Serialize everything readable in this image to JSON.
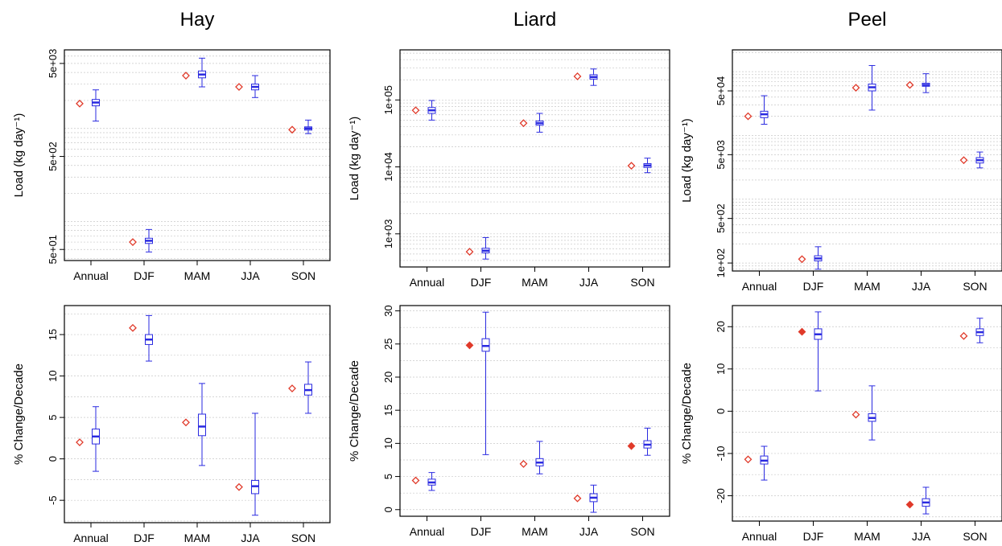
{
  "colors": {
    "box": "#2a2ae0",
    "marker": "#e03a2a",
    "grid": "#c8c8c8",
    "axis": "#000000"
  },
  "chart_data": [
    {
      "id": "hay-load",
      "type": "boxplot",
      "title": "Hay",
      "ylabel": "Load (kg day⁻¹)",
      "yscale": "log",
      "ylim": [
        38,
        7000
      ],
      "yticks": [
        50,
        500,
        5000
      ],
      "ytick_labels": [
        "5e+01",
        "5e+02",
        "5e+03"
      ],
      "categories": [
        "Annual",
        "DJF",
        "MAM",
        "JJA",
        "SON"
      ],
      "boxes": [
        {
          "whislo": 1200,
          "q1": 1750,
          "med": 1900,
          "q3": 2050,
          "whishi": 2600
        },
        {
          "whislo": 47,
          "q1": 58,
          "med": 62,
          "q3": 66,
          "whishi": 82
        },
        {
          "whislo": 2800,
          "q1": 3500,
          "med": 3800,
          "q3": 4150,
          "whishi": 5700
        },
        {
          "whislo": 2150,
          "q1": 2600,
          "med": 2800,
          "q3": 3000,
          "whishi": 3700
        },
        {
          "whislo": 880,
          "q1": 960,
          "med": 1000,
          "q3": 1040,
          "whishi": 1230
        }
      ],
      "markers": [
        1850,
        60,
        3700,
        2800,
        970
      ],
      "marker_filled": [
        false,
        false,
        false,
        false,
        false
      ]
    },
    {
      "id": "liard-load",
      "type": "boxplot",
      "title": "Liard",
      "ylabel": "Load (kg day⁻¹)",
      "yscale": "log",
      "ylim": [
        320,
        560000
      ],
      "yticks": [
        1000,
        10000,
        100000
      ],
      "ytick_labels": [
        "1e+03",
        "1e+04",
        "1e+05"
      ],
      "categories": [
        "Annual",
        "DJF",
        "MAM",
        "JJA",
        "SON"
      ],
      "boxes": [
        {
          "whislo": 50000,
          "q1": 63000,
          "med": 70000,
          "q3": 77000,
          "whishi": 98000
        },
        {
          "whislo": 420,
          "q1": 520,
          "med": 560,
          "q3": 610,
          "whishi": 880
        },
        {
          "whislo": 33000,
          "q1": 42000,
          "med": 45000,
          "q3": 48500,
          "whishi": 63000
        },
        {
          "whislo": 165000,
          "q1": 205000,
          "med": 220000,
          "q3": 238000,
          "whishi": 290000
        },
        {
          "whislo": 8200,
          "q1": 9800,
          "med": 10500,
          "q3": 11200,
          "whishi": 13500
        }
      ],
      "markers": [
        70000,
        540,
        45000,
        225000,
        10400
      ],
      "marker_filled": [
        false,
        false,
        false,
        false,
        false
      ]
    },
    {
      "id": "peel-load",
      "type": "boxplot",
      "title": "Peel",
      "ylabel": "Load (kg day⁻¹)",
      "yscale": "log",
      "ylim": [
        75,
        220000
      ],
      "yticks": [
        100,
        500,
        5000,
        50000
      ],
      "ytick_labels": [
        "1e+02",
        "5e+02",
        "5e+03",
        "5e+04"
      ],
      "categories": [
        "Annual",
        "DJF",
        "MAM",
        "JJA",
        "SON"
      ],
      "boxes": [
        {
          "whislo": 15000,
          "q1": 19000,
          "med": 21500,
          "q3": 24000,
          "whishi": 42000
        },
        {
          "whislo": 80,
          "q1": 108,
          "med": 118,
          "q3": 130,
          "whishi": 180
        },
        {
          "whislo": 25000,
          "q1": 50000,
          "med": 57000,
          "q3": 64000,
          "whishi": 125000
        },
        {
          "whislo": 47000,
          "q1": 59000,
          "med": 62000,
          "q3": 66000,
          "whishi": 93000
        },
        {
          "whislo": 3100,
          "q1": 3700,
          "med": 4100,
          "q3": 4500,
          "whishi": 5500
        }
      ],
      "markers": [
        20000,
        115,
        56000,
        62000,
        4100
      ],
      "marker_filled": [
        false,
        false,
        false,
        false,
        false
      ]
    },
    {
      "id": "hay-change",
      "type": "boxplot",
      "ylabel": "% Change/Decade",
      "yscale": "linear",
      "ylim": [
        -7.7,
        18.5
      ],
      "yticks": [
        -5,
        0,
        5,
        10,
        15
      ],
      "ytick_labels": [
        "-5",
        "0",
        "5",
        "10",
        "15"
      ],
      "categories": [
        "Annual",
        "DJF",
        "MAM",
        "JJA",
        "SON"
      ],
      "boxes": [
        {
          "whislo": -1.5,
          "q1": 1.8,
          "med": 2.7,
          "q3": 3.6,
          "whishi": 6.3
        },
        {
          "whislo": 11.8,
          "q1": 13.8,
          "med": 14.4,
          "q3": 15.0,
          "whishi": 17.3
        },
        {
          "whislo": -0.8,
          "q1": 2.8,
          "med": 3.9,
          "q3": 5.4,
          "whishi": 9.1
        },
        {
          "whislo": -6.8,
          "q1": -4.2,
          "med": -3.3,
          "q3": -2.6,
          "whishi": 5.5
        },
        {
          "whislo": 5.5,
          "q1": 7.7,
          "med": 8.3,
          "q3": 9.0,
          "whishi": 11.7
        }
      ],
      "markers": [
        2.0,
        15.8,
        4.4,
        -3.4,
        8.5
      ],
      "marker_filled": [
        false,
        false,
        false,
        false,
        false
      ]
    },
    {
      "id": "liard-change",
      "type": "boxplot",
      "ylabel": "% Change/Decade",
      "yscale": "linear",
      "ylim": [
        -1.0,
        30.8
      ],
      "yticks": [
        0,
        5,
        10,
        15,
        20,
        25,
        30
      ],
      "ytick_labels": [
        "0",
        "5",
        "10",
        "15",
        "20",
        "25",
        "30"
      ],
      "categories": [
        "Annual",
        "DJF",
        "MAM",
        "JJA",
        "SON"
      ],
      "boxes": [
        {
          "whislo": 2.9,
          "q1": 3.7,
          "med": 4.1,
          "q3": 4.6,
          "whishi": 5.6
        },
        {
          "whislo": 8.3,
          "q1": 23.9,
          "med": 24.7,
          "q3": 25.8,
          "whishi": 29.8
        },
        {
          "whislo": 5.4,
          "q1": 6.6,
          "med": 7.1,
          "q3": 7.7,
          "whishi": 10.3
        },
        {
          "whislo": -0.4,
          "q1": 1.2,
          "med": 1.8,
          "q3": 2.4,
          "whishi": 3.7
        },
        {
          "whislo": 8.2,
          "q1": 9.3,
          "med": 9.8,
          "q3": 10.4,
          "whishi": 12.3
        }
      ],
      "markers": [
        4.4,
        24.8,
        6.9,
        1.7,
        9.6
      ],
      "marker_filled": [
        false,
        true,
        false,
        false,
        true
      ]
    },
    {
      "id": "peel-change",
      "type": "boxplot",
      "ylabel": "% Change/Decade",
      "yscale": "linear",
      "ylim": [
        -26.0,
        25.0
      ],
      "yticks": [
        -20,
        -10,
        0,
        10,
        20
      ],
      "ytick_labels": [
        "-20",
        "-10",
        "0",
        "10",
        "20"
      ],
      "categories": [
        "Annual",
        "DJF",
        "MAM",
        "JJA",
        "SON"
      ],
      "boxes": [
        {
          "whislo": -16.3,
          "q1": -12.5,
          "med": -11.7,
          "q3": -10.6,
          "whishi": -8.3
        },
        {
          "whislo": 4.8,
          "q1": 17.0,
          "med": 18.2,
          "q3": 19.5,
          "whishi": 23.5
        },
        {
          "whislo": -6.8,
          "q1": -2.4,
          "med": -1.6,
          "q3": -0.6,
          "whishi": 6.0
        },
        {
          "whislo": -24.3,
          "q1": -22.5,
          "med": -21.6,
          "q3": -20.7,
          "whishi": -18.0
        },
        {
          "whislo": 16.2,
          "q1": 17.9,
          "med": 18.7,
          "q3": 19.5,
          "whishi": 22.0
        }
      ],
      "markers": [
        -11.4,
        18.8,
        -0.8,
        -22.1,
        17.8
      ],
      "marker_filled": [
        false,
        true,
        false,
        true,
        false
      ]
    }
  ]
}
